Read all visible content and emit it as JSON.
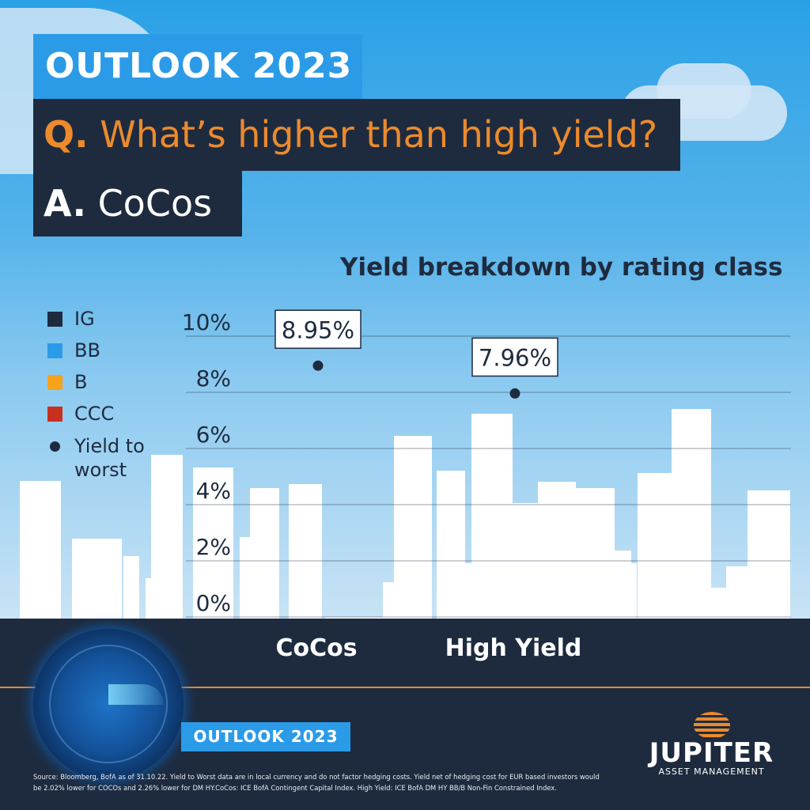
{
  "header": {
    "banner_title": "OUTLOOK 2023",
    "question_prefix": "Q.",
    "question_text": "What’s higher than high yield?",
    "answer_prefix": "A.",
    "answer_text": "CoCos"
  },
  "legend": {
    "items": [
      {
        "label": "IG",
        "color": "#1e2b3f"
      },
      {
        "label": "BB",
        "color": "#2b9be8"
      },
      {
        "label": "B",
        "color": "#f6a21b"
      },
      {
        "label": "CCC",
        "color": "#c8301e"
      }
    ],
    "ytw_line1": "Yield to",
    "ytw_line2": "worst"
  },
  "chart_data": {
    "type": "scatter",
    "title": "Yield breakdown by rating class",
    "categories": [
      "CoCos",
      "High Yield"
    ],
    "series": [
      {
        "name": "Yield to worst",
        "values": [
          8.95,
          7.96
        ]
      }
    ],
    "value_labels": [
      "8.95%",
      "7.96%"
    ],
    "yticks": [
      "0%",
      "2%",
      "4%",
      "6%",
      "8%",
      "10%"
    ],
    "ylim": [
      0,
      10
    ],
    "grid": true,
    "legend_position": "left"
  },
  "footer": {
    "outlook_label": "OUTLOOK 2023",
    "logo_name": "JUPITER",
    "logo_sub": "ASSET MANAGEMENT",
    "source_line1": "Source: Bloomberg, BofA as of 31.10.22. Yield to Worst data are in local currency and do not factor hedging costs. Yield net of hedging cost for EUR based investors would",
    "source_line2": "be 2.02% lower for COCOs and 2.26% lower for DM HY.CoCos: ICE BofA Contingent Capital Index. High Yield: ICE BofA DM HY BB/B Non-Fin Constrained Index."
  },
  "colors": {
    "navy": "#1e2b3f",
    "blue": "#2b9be8",
    "orange": "#ec8a2c"
  }
}
